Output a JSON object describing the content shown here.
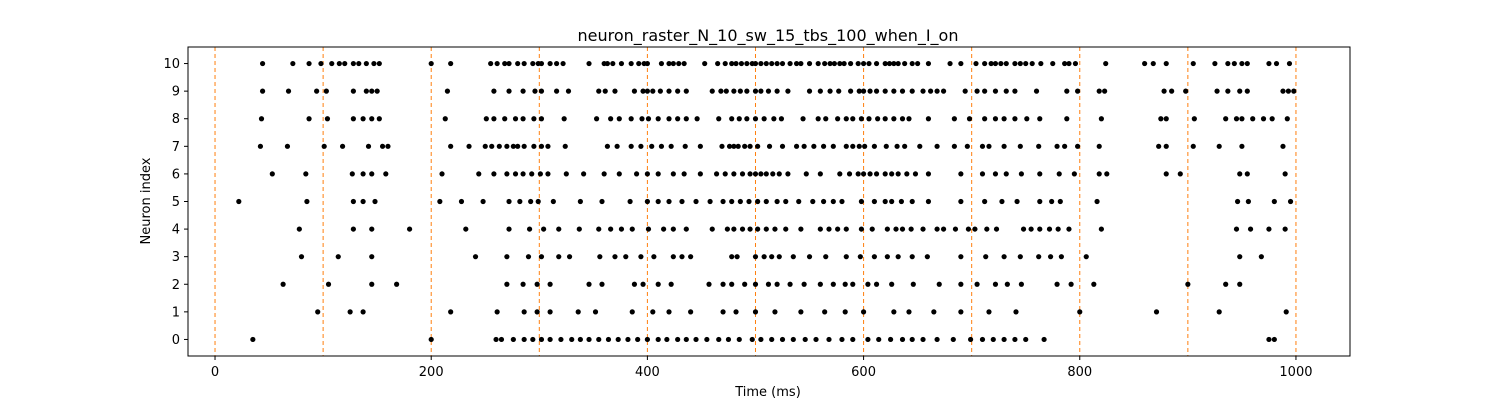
{
  "chart_data": {
    "type": "scatter",
    "title": "neuron_raster_N_10_sw_15_tbs_100_when_I_on",
    "xlabel": "Time (ms)",
    "ylabel": "Neuron index",
    "xlim": [
      -25,
      1050
    ],
    "ylim": [
      -0.6,
      10.6
    ],
    "xticks": [
      0,
      200,
      400,
      600,
      800,
      1000
    ],
    "yticks": [
      0,
      1,
      2,
      3,
      4,
      5,
      6,
      7,
      8,
      9,
      10
    ],
    "grid": false,
    "legend": "none",
    "marker_color": "#000000",
    "vline_color": "#ff7f0e",
    "vlines": [
      0,
      100,
      200,
      300,
      400,
      500,
      600,
      700,
      800,
      900,
      1000
    ],
    "spikes": [
      {
        "neuron": 10,
        "times": [
          44,
          72,
          87,
          98,
          108,
          115,
          120,
          128,
          133,
          140,
          147,
          152,
          200,
          218,
          255,
          261,
          268,
          272,
          280,
          286,
          294,
          299,
          302,
          310,
          316,
          322,
          346,
          360,
          363,
          368,
          376,
          385,
          392,
          397,
          400,
          413,
          420,
          424,
          429,
          434,
          453,
          465,
          472,
          478,
          482,
          487,
          492,
          497,
          500,
          505,
          510,
          515,
          520,
          525,
          532,
          538,
          542,
          550,
          558,
          564,
          569,
          573,
          578,
          582,
          588,
          595,
          600,
          605,
          612,
          620,
          624,
          628,
          632,
          638,
          645,
          650,
          660,
          680,
          690,
          704,
          712,
          718,
          722,
          727,
          732,
          740,
          745,
          750,
          756,
          764,
          775,
          786,
          790,
          796,
          824,
          860,
          868,
          880,
          905,
          925,
          937,
          943,
          950,
          955,
          975,
          982,
          994
        ]
      },
      {
        "neuron": 9,
        "times": [
          44,
          68,
          94,
          103,
          128,
          140,
          145,
          150,
          215,
          258,
          272,
          285,
          296,
          302,
          316,
          327,
          355,
          361,
          370,
          388,
          396,
          400,
          405,
          412,
          420,
          428,
          436,
          460,
          468,
          473,
          480,
          486,
          492,
          500,
          505,
          512,
          520,
          530,
          550,
          560,
          569,
          577,
          588,
          596,
          600,
          606,
          612,
          620,
          628,
          636,
          645,
          655,
          662,
          668,
          674,
          694,
          705,
          712,
          722,
          732,
          740,
          760,
          788,
          798,
          818,
          823,
          878,
          885,
          898,
          927,
          937,
          948,
          955,
          988,
          993,
          998
        ]
      },
      {
        "neuron": 8,
        "times": [
          43,
          87,
          104,
          128,
          137,
          145,
          152,
          213,
          251,
          258,
          268,
          278,
          285,
          295,
          302,
          323,
          353,
          366,
          374,
          385,
          395,
          401,
          410,
          420,
          428,
          436,
          446,
          466,
          478,
          485,
          492,
          500,
          508,
          517,
          524,
          544,
          558,
          565,
          576,
          584,
          590,
          598,
          605,
          613,
          620,
          628,
          636,
          642,
          660,
          684,
          698,
          712,
          722,
          730,
          740,
          751,
          763,
          788,
          820,
          875,
          880,
          906,
          935,
          945,
          950,
          960,
          970,
          978,
          992
        ]
      },
      {
        "neuron": 7,
        "times": [
          42,
          67,
          101,
          118,
          142,
          155,
          160,
          218,
          235,
          250,
          256,
          263,
          270,
          276,
          280,
          286,
          295,
          302,
          308,
          324,
          363,
          372,
          385,
          394,
          404,
          413,
          422,
          435,
          449,
          469,
          476,
          480,
          484,
          490,
          495,
          502,
          513,
          525,
          538,
          545,
          554,
          563,
          572,
          584,
          590,
          596,
          601,
          610,
          621,
          631,
          638,
          652,
          668,
          684,
          696,
          710,
          716,
          730,
          745,
          762,
          779,
          786,
          798,
          818,
          873,
          880,
          905,
          929,
          950,
          988
        ]
      },
      {
        "neuron": 6,
        "times": [
          53,
          84,
          127,
          137,
          145,
          158,
          210,
          244,
          258,
          270,
          278,
          285,
          293,
          301,
          308,
          325,
          341,
          360,
          374,
          390,
          400,
          410,
          424,
          434,
          449,
          464,
          472,
          480,
          488,
          495,
          500,
          505,
          510,
          516,
          522,
          530,
          547,
          560,
          578,
          587,
          595,
          600,
          606,
          612,
          620,
          626,
          632,
          640,
          648,
          660,
          690,
          710,
          722,
          732,
          746,
          763,
          781,
          795,
          818,
          825,
          880,
          893,
          948,
          955,
          990
        ]
      },
      {
        "neuron": 5,
        "times": [
          22,
          85,
          128,
          137,
          148,
          208,
          228,
          248,
          272,
          282,
          292,
          299,
          313,
          338,
          358,
          384,
          400,
          410,
          420,
          432,
          445,
          458,
          470,
          478,
          486,
          494,
          502,
          510,
          520,
          528,
          540,
          553,
          563,
          572,
          580,
          598,
          610,
          620,
          626,
          635,
          645,
          660,
          690,
          712,
          728,
          742,
          763,
          774,
          782,
          816,
          946,
          956,
          980,
          995
        ]
      },
      {
        "neuron": 4,
        "times": [
          78,
          128,
          145,
          180,
          232,
          272,
          291,
          304,
          318,
          337,
          355,
          366,
          376,
          386,
          401,
          415,
          424,
          436,
          460,
          474,
          480,
          488,
          495,
          502,
          510,
          518,
          528,
          542,
          560,
          568,
          576,
          584,
          598,
          608,
          622,
          630,
          636,
          644,
          655,
          668,
          674,
          685,
          697,
          703,
          714,
          723,
          748,
          755,
          763,
          772,
          780,
          790,
          820,
          945,
          958,
          975,
          990
        ]
      },
      {
        "neuron": 3,
        "times": [
          80,
          114,
          145,
          241,
          270,
          290,
          302,
          318,
          328,
          356,
          370,
          380,
          394,
          406,
          424,
          432,
          440,
          478,
          483,
          500,
          508,
          515,
          522,
          535,
          550,
          565,
          584,
          597,
          610,
          622,
          632,
          645,
          659,
          690,
          713,
          730,
          745,
          762,
          773,
          783,
          806,
          948,
          968
        ]
      },
      {
        "neuron": 2,
        "times": [
          63,
          105,
          145,
          168,
          270,
          285,
          298,
          310,
          346,
          358,
          388,
          396,
          410,
          422,
          457,
          470,
          478,
          490,
          500,
          512,
          520,
          532,
          545,
          560,
          572,
          583,
          590,
          604,
          612,
          626,
          646,
          670,
          690,
          705,
          722,
          733,
          746,
          779,
          792,
          813,
          900,
          935,
          948
        ]
      },
      {
        "neuron": 1,
        "times": [
          95,
          125,
          137,
          218,
          261,
          286,
          298,
          310,
          336,
          352,
          386,
          405,
          420,
          440,
          470,
          482,
          500,
          518,
          542,
          564,
          583,
          600,
          628,
          642,
          665,
          690,
          716,
          741,
          800,
          871,
          929,
          991
        ]
      },
      {
        "neuron": 0,
        "times": [
          35,
          200,
          260,
          265,
          276,
          286,
          294,
          302,
          310,
          320,
          330,
          338,
          346,
          355,
          364,
          373,
          382,
          391,
          400,
          410,
          418,
          428,
          436,
          445,
          455,
          466,
          475,
          485,
          497,
          505,
          515,
          525,
          535,
          546,
          556,
          568,
          580,
          590,
          604,
          614,
          625,
          636,
          645,
          655,
          668,
          683,
          699,
          710,
          720,
          730,
          740,
          750,
          767,
          975,
          980
        ]
      }
    ]
  }
}
